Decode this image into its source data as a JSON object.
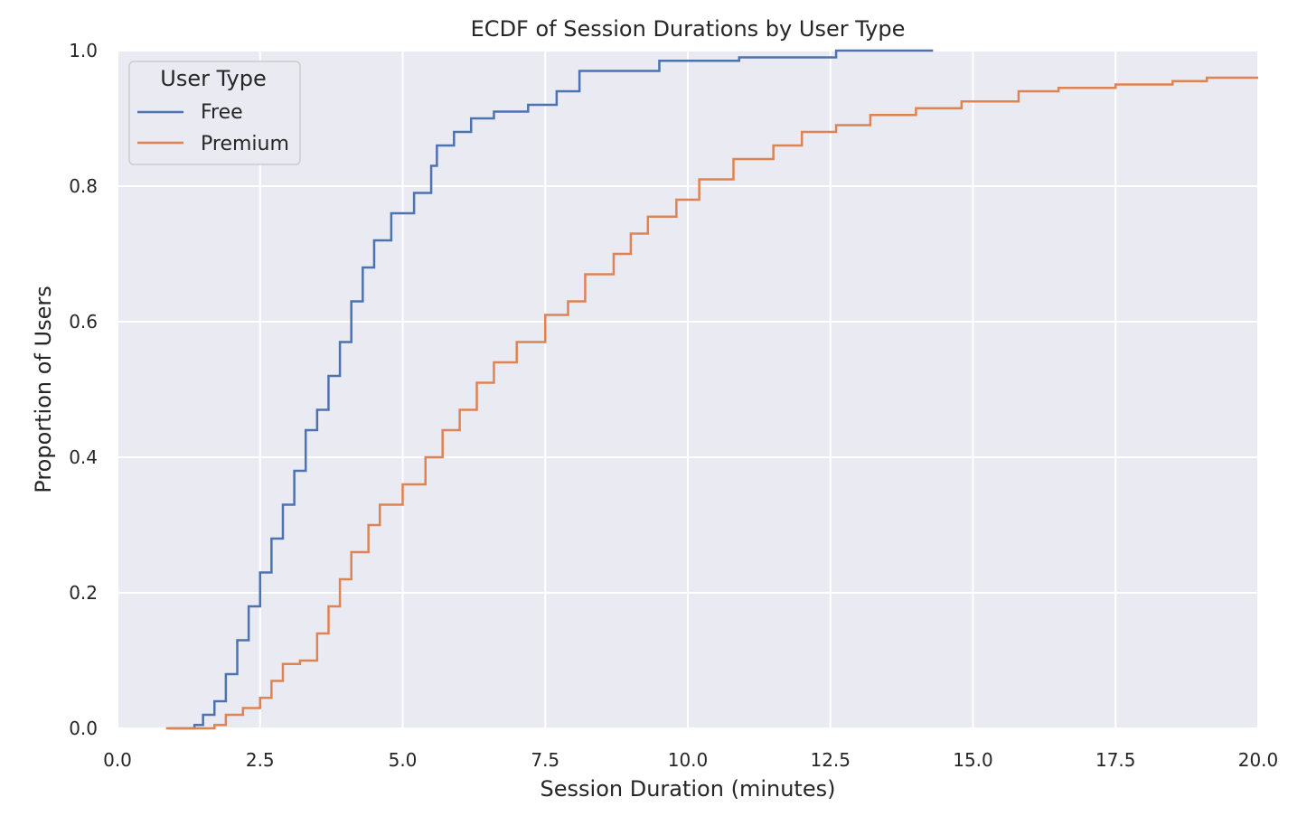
{
  "chart_data": {
    "type": "line",
    "step": true,
    "title": "ECDF of Session Durations by User Type",
    "xlabel": "Session Duration (minutes)",
    "ylabel": "Proportion of Users",
    "xlim": [
      0,
      20
    ],
    "ylim": [
      0,
      1
    ],
    "xticks": [
      "0.0",
      "2.5",
      "5.0",
      "7.5",
      "10.0",
      "12.5",
      "15.0",
      "17.5",
      "20.0"
    ],
    "yticks": [
      "0.0",
      "0.2",
      "0.4",
      "0.6",
      "0.8",
      "1.0"
    ],
    "grid": true,
    "legend": {
      "title": "User Type",
      "placement": "top-left"
    },
    "series": [
      {
        "name": "Free",
        "color": "#4c72b0",
        "points": [
          [
            1.35,
            0.005
          ],
          [
            1.5,
            0.02
          ],
          [
            1.7,
            0.04
          ],
          [
            1.9,
            0.08
          ],
          [
            2.1,
            0.13
          ],
          [
            2.3,
            0.18
          ],
          [
            2.5,
            0.23
          ],
          [
            2.7,
            0.28
          ],
          [
            2.9,
            0.33
          ],
          [
            3.1,
            0.38
          ],
          [
            3.3,
            0.44
          ],
          [
            3.5,
            0.47
          ],
          [
            3.7,
            0.52
          ],
          [
            3.9,
            0.57
          ],
          [
            4.1,
            0.63
          ],
          [
            4.3,
            0.68
          ],
          [
            4.5,
            0.72
          ],
          [
            4.8,
            0.76
          ],
          [
            5.2,
            0.79
          ],
          [
            5.5,
            0.83
          ],
          [
            5.6,
            0.86
          ],
          [
            5.9,
            0.88
          ],
          [
            6.2,
            0.9
          ],
          [
            6.6,
            0.91
          ],
          [
            7.2,
            0.92
          ],
          [
            7.7,
            0.94
          ],
          [
            8.1,
            0.97
          ],
          [
            9.2,
            0.97
          ],
          [
            9.5,
            0.985
          ],
          [
            10.9,
            0.99
          ],
          [
            12.6,
            1.0
          ],
          [
            14.3,
            1.0
          ]
        ]
      },
      {
        "name": "Premium",
        "color": "#dd8452",
        "points": [
          [
            1.7,
            0.005
          ],
          [
            1.9,
            0.02
          ],
          [
            2.2,
            0.03
          ],
          [
            2.5,
            0.045
          ],
          [
            2.7,
            0.07
          ],
          [
            2.9,
            0.095
          ],
          [
            3.2,
            0.1
          ],
          [
            3.5,
            0.14
          ],
          [
            3.7,
            0.18
          ],
          [
            3.9,
            0.22
          ],
          [
            4.1,
            0.26
          ],
          [
            4.4,
            0.3
          ],
          [
            4.6,
            0.33
          ],
          [
            5.0,
            0.36
          ],
          [
            5.4,
            0.4
          ],
          [
            5.7,
            0.44
          ],
          [
            6.0,
            0.47
          ],
          [
            6.3,
            0.51
          ],
          [
            6.6,
            0.54
          ],
          [
            7.0,
            0.57
          ],
          [
            7.5,
            0.61
          ],
          [
            7.9,
            0.63
          ],
          [
            8.2,
            0.67
          ],
          [
            8.7,
            0.7
          ],
          [
            9.0,
            0.73
          ],
          [
            9.3,
            0.755
          ],
          [
            9.8,
            0.78
          ],
          [
            10.2,
            0.81
          ],
          [
            10.8,
            0.84
          ],
          [
            11.5,
            0.86
          ],
          [
            12.0,
            0.88
          ],
          [
            12.6,
            0.89
          ],
          [
            13.2,
            0.905
          ],
          [
            14.0,
            0.915
          ],
          [
            14.8,
            0.925
          ],
          [
            15.8,
            0.94
          ],
          [
            16.5,
            0.945
          ],
          [
            17.5,
            0.95
          ],
          [
            18.5,
            0.955
          ],
          [
            19.1,
            0.96
          ],
          [
            20.0,
            0.96
          ]
        ]
      }
    ]
  }
}
